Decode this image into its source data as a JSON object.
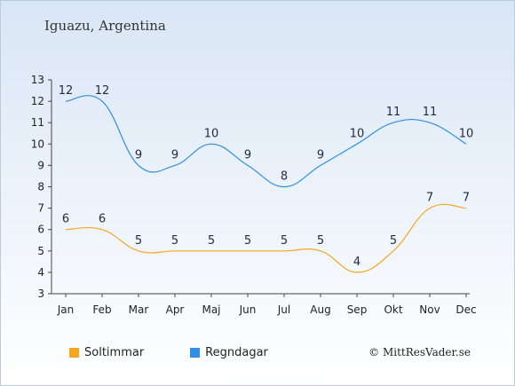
{
  "title": "Iguazu, Argentina",
  "credit": "© MittResVader.se",
  "colors": {
    "sun": "#f5a623",
    "rain": "#2f8fe5"
  },
  "chart_data": {
    "type": "line",
    "title": "Iguazu, Argentina",
    "categories": [
      "Jan",
      "Feb",
      "Mar",
      "Apr",
      "Maj",
      "Jun",
      "Jul",
      "Aug",
      "Sep",
      "Okt",
      "Nov",
      "Dec"
    ],
    "ylim": [
      3,
      13
    ],
    "yticks": [
      3,
      4,
      5,
      6,
      7,
      8,
      9,
      10,
      11,
      12,
      13
    ],
    "grid": false,
    "legend_position": "bottom-left",
    "series": [
      {
        "name": "Soltimmar",
        "color": "#f5a623",
        "values": [
          6,
          6,
          5,
          5,
          5,
          5,
          5,
          5,
          4,
          5,
          7,
          7
        ]
      },
      {
        "name": "Regndagar",
        "color": "#2f8fe5",
        "values": [
          12,
          12,
          9,
          9,
          10,
          9,
          8,
          9,
          10,
          11,
          11,
          10
        ]
      }
    ]
  }
}
